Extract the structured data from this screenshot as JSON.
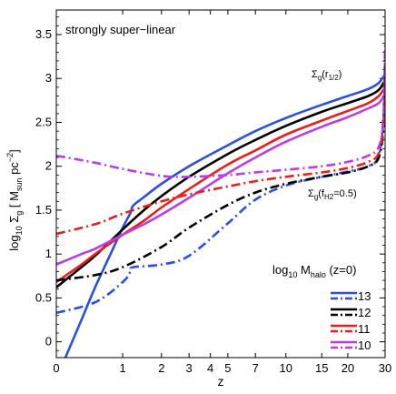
{
  "chart_data": {
    "type": "line",
    "annotation": "strongly super−linear",
    "xlabel": "z",
    "ylabel": {
      "pre": "log",
      "sub1": "10",
      "mid": " Σ",
      "sub2": "g",
      "post": " [ M",
      "sub3": "sun",
      "post2": " pc",
      "sup": "−2",
      "end": "]"
    },
    "x_axis": {
      "scale": "log(1+z)",
      "ticks": [
        0,
        1,
        2,
        3,
        4,
        5,
        7,
        10,
        15,
        20,
        30
      ],
      "lim": [
        0,
        30
      ]
    },
    "y_axis": {
      "ticks": [
        0,
        0.5,
        1,
        1.5,
        2,
        2.5,
        3,
        3.5
      ],
      "lim": [
        -0.18,
        3.78
      ]
    },
    "curve_labels": {
      "upper": {
        "main": "Σ",
        "sub": "g",
        "paren": "(r",
        "sub2": "1/2",
        "close": ")"
      },
      "lower": {
        "main": "Σ",
        "sub": "g",
        "paren": "(f",
        "sub2": "H2",
        "close": "=0.5)"
      }
    },
    "legend": {
      "title": {
        "pre": "log",
        "sub1": "10",
        "mid": " M",
        "sub2": "halo",
        "post": " (z=0)"
      },
      "placement": "bottom-right",
      "entries": [
        {
          "label": "13",
          "color": "#2d4fe0"
        },
        {
          "label": "12",
          "color": "#000000"
        },
        {
          "label": "11",
          "color": "#e8201c"
        },
        {
          "label": "10",
          "color": "#b93ee6"
        }
      ]
    },
    "series": [
      {
        "legend": "13",
        "kind": "r_half",
        "color": "#2d4fe0",
        "dash": "solid",
        "x": [
          0.1,
          0.3,
          0.5,
          0.8,
          1.0,
          1.17,
          1.23,
          1.5,
          2,
          3,
          5,
          7,
          10,
          15,
          20,
          25,
          28,
          30
        ],
        "y": [
          -0.18,
          0.25,
          0.62,
          1.05,
          1.3,
          1.47,
          1.55,
          1.65,
          1.8,
          2.0,
          2.24,
          2.4,
          2.55,
          2.7,
          2.8,
          2.88,
          2.95,
          3.05
        ]
      },
      {
        "legend": "12",
        "kind": "r_half",
        "color": "#000000",
        "dash": "solid",
        "x": [
          0,
          0.3,
          0.5,
          1.0,
          1.5,
          2,
          3,
          5,
          7,
          10,
          15,
          20,
          25,
          28,
          30
        ],
        "y": [
          0.62,
          0.85,
          0.98,
          1.28,
          1.5,
          1.66,
          1.88,
          2.14,
          2.3,
          2.46,
          2.62,
          2.72,
          2.8,
          2.87,
          2.98
        ]
      },
      {
        "legend": "11",
        "kind": "r_half",
        "color": "#e8201c",
        "dash": "solid",
        "x": [
          0,
          0.3,
          0.5,
          1.0,
          1.5,
          2,
          3,
          5,
          7,
          10,
          15,
          20,
          25,
          28,
          30
        ],
        "y": [
          0.68,
          0.88,
          1.0,
          1.22,
          1.38,
          1.53,
          1.74,
          2.02,
          2.18,
          2.36,
          2.52,
          2.63,
          2.72,
          2.8,
          2.9
        ]
      },
      {
        "legend": "10",
        "kind": "r_half",
        "color": "#b93ee6",
        "dash": "solid",
        "x": [
          0,
          0.3,
          0.5,
          1.0,
          1.5,
          2,
          3,
          5,
          7,
          10,
          15,
          20,
          25,
          28,
          30
        ],
        "y": [
          0.88,
          1.0,
          1.06,
          1.22,
          1.34,
          1.45,
          1.64,
          1.92,
          2.1,
          2.28,
          2.45,
          2.56,
          2.66,
          2.72,
          2.82
        ]
      },
      {
        "legend": "13",
        "kind": "f_H2",
        "color": "#2d4fe0",
        "dash": "dashdot",
        "x": [
          0,
          0.5,
          1.0,
          1.17,
          1.23,
          2,
          3,
          5,
          7,
          10,
          15,
          20,
          25,
          28,
          29.5,
          30
        ],
        "y": [
          0.33,
          0.45,
          0.68,
          0.8,
          0.85,
          0.88,
          0.98,
          1.35,
          1.62,
          1.78,
          1.88,
          1.94,
          2.0,
          2.12,
          2.6,
          3.32
        ]
      },
      {
        "legend": "12",
        "kind": "f_H2",
        "color": "#000000",
        "dash": "dashdot",
        "x": [
          0,
          0.5,
          1.0,
          2,
          3,
          5,
          7,
          10,
          15,
          20,
          25,
          28,
          29.5,
          30
        ],
        "y": [
          0.7,
          0.76,
          0.85,
          1.08,
          1.3,
          1.56,
          1.7,
          1.8,
          1.88,
          1.93,
          2.0,
          2.1,
          2.45,
          3.05
        ]
      },
      {
        "legend": "11",
        "kind": "f_H2",
        "color": "#e8201c",
        "dash": "dashdot",
        "x": [
          0,
          0.5,
          1.0,
          2,
          3,
          5,
          7,
          10,
          15,
          20,
          25,
          28,
          29.5,
          30
        ],
        "y": [
          1.23,
          1.34,
          1.46,
          1.6,
          1.68,
          1.77,
          1.83,
          1.88,
          1.93,
          1.98,
          2.05,
          2.15,
          2.5,
          3.15
        ]
      },
      {
        "legend": "10",
        "kind": "f_H2",
        "color": "#b93ee6",
        "dash": "dashdot",
        "x": [
          0,
          0.5,
          1.0,
          2,
          3,
          5,
          7,
          10,
          15,
          20,
          25,
          28,
          29.5,
          30
        ],
        "y": [
          2.12,
          2.04,
          1.97,
          1.89,
          1.88,
          1.9,
          1.93,
          1.96,
          2.0,
          2.05,
          2.12,
          2.22,
          2.55,
          3.4
        ]
      }
    ]
  }
}
